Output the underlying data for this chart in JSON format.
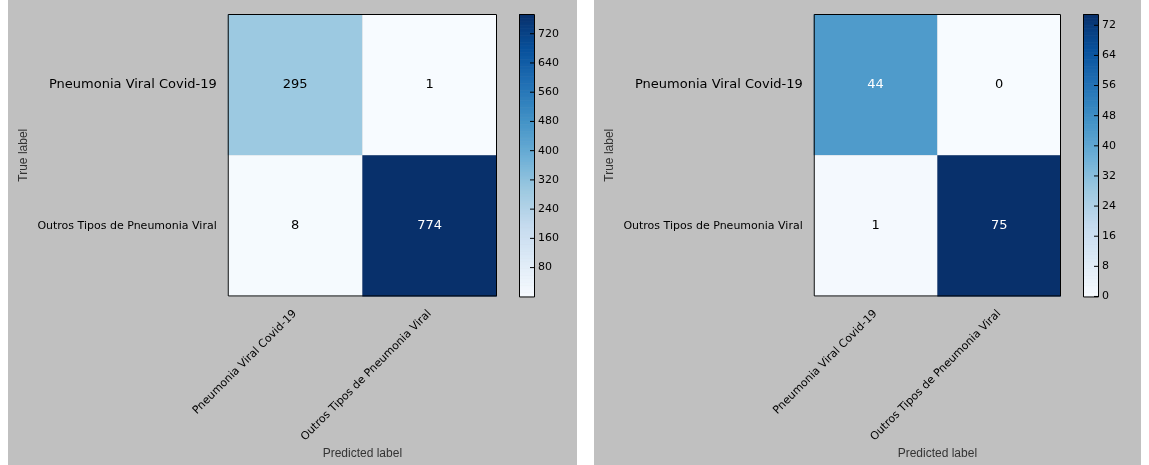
{
  "chart_data": [
    {
      "type": "heatmap",
      "categories": [
        "Pneumonia Viral Covid-19",
        "Outros Tipos de Pneumonia Viral"
      ],
      "y_categories": [
        "Pneumonia Viral Covid-19",
        "Outros Tipos de Pneumonia Viral"
      ],
      "cells": [
        [
          295,
          1
        ],
        [
          8,
          774
        ]
      ],
      "clim": [
        1,
        774
      ],
      "cticks": [
        80,
        160,
        240,
        320,
        400,
        480,
        560,
        640,
        720
      ],
      "xlabel": "Predicted label",
      "ylabel": "True label",
      "data_labels": true
    },
    {
      "type": "heatmap",
      "categories": [
        "Pneumonia Viral Covid-19",
        "Outros Tipos de Pneumonia Viral"
      ],
      "y_categories": [
        "Pneumonia Viral Covid-19",
        "Outros Tipos de Pneumonia Viral"
      ],
      "cells": [
        [
          44,
          0
        ],
        [
          1,
          75
        ]
      ],
      "clim": [
        0,
        75
      ],
      "cticks": [
        0,
        8,
        16,
        24,
        32,
        40,
        48,
        56,
        64,
        72
      ],
      "xlabel": "Predicted label",
      "ylabel": "True label",
      "data_labels": true
    }
  ]
}
